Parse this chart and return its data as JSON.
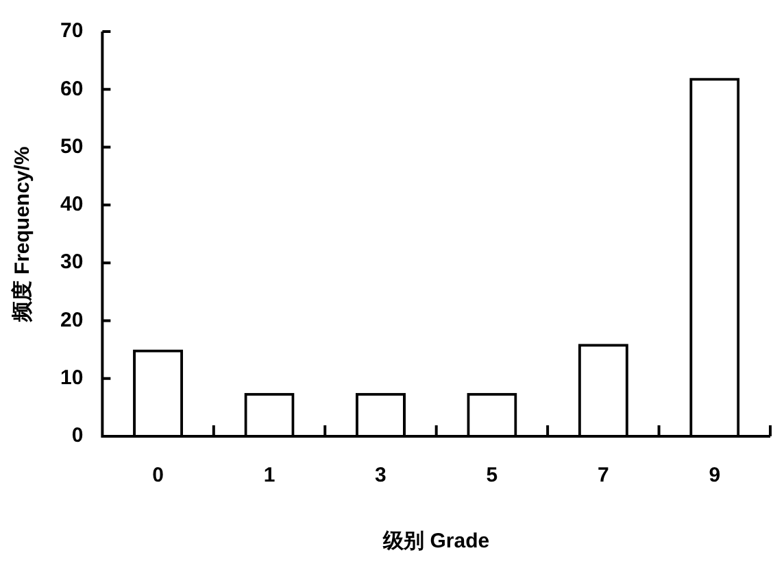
{
  "chart_data": {
    "type": "bar",
    "xlabel": "级别 Grade",
    "ylabel": "频度 Frequency/%",
    "categories": [
      "0",
      "1",
      "3",
      "5",
      "7",
      "9"
    ],
    "values": [
      15,
      7.5,
      7.5,
      7.5,
      16,
      62
    ],
    "color": "#000000",
    "ylim": [
      0,
      70
    ],
    "yticks": [
      0,
      10,
      20,
      30,
      40,
      50,
      60,
      70
    ],
    "grid": false,
    "legend": false
  }
}
